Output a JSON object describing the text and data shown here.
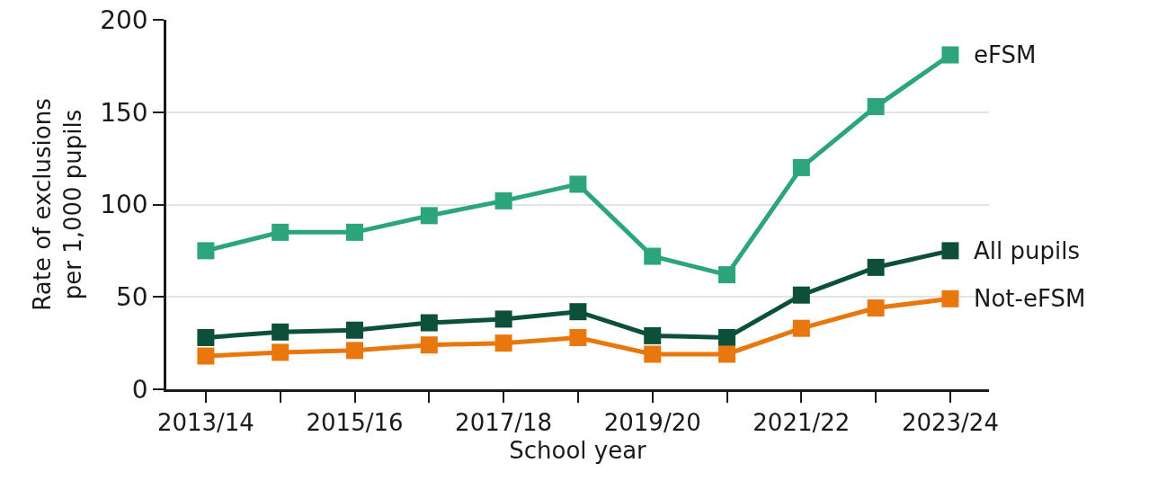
{
  "chart_data": {
    "type": "line",
    "xlabel": "School year",
    "ylabel": "Rate of exclusions\nper 1,000 pupils",
    "categories": [
      "2013/14",
      null,
      "2015/16",
      null,
      "2017/18",
      null,
      "2019/20",
      null,
      "2021/22",
      null,
      "2023/24"
    ],
    "series": [
      {
        "name": "eFSM",
        "color": "#2ca47e",
        "values": [
          75,
          85,
          85,
          94,
          102,
          111,
          72,
          62,
          120,
          153,
          181
        ]
      },
      {
        "name": "All pupils",
        "color": "#0c4f3b",
        "values": [
          28,
          31,
          32,
          36,
          38,
          42,
          29,
          28,
          51,
          66,
          75
        ]
      },
      {
        "name": "Not-eFSM",
        "color": "#e8770e",
        "values": [
          18,
          20,
          21,
          24,
          25,
          28,
          19,
          19,
          33,
          44,
          49
        ]
      }
    ],
    "ylim": [
      0,
      200
    ],
    "yticks": [
      0,
      50,
      100,
      150,
      200
    ],
    "grid": "y",
    "legend": false,
    "marker": "square",
    "line_style": "solid"
  }
}
